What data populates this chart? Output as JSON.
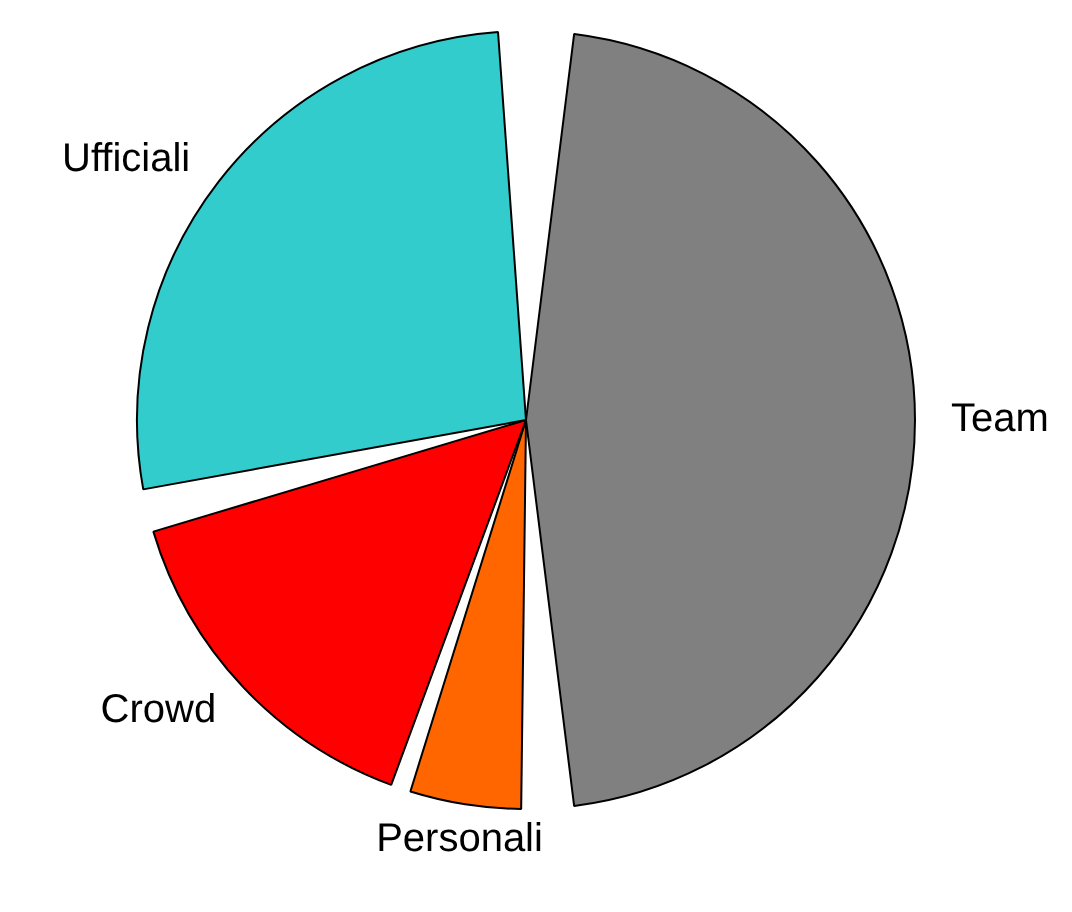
{
  "chart_data": {
    "type": "pie",
    "categories": [
      "Team",
      "Personali",
      "Crowd",
      "Ufficiali"
    ],
    "values": [
      50,
      5,
      16,
      29
    ],
    "colors": [
      "#808080",
      "#ff6600",
      "#ff0000",
      "#33cccc"
    ],
    "legend": false
  }
}
